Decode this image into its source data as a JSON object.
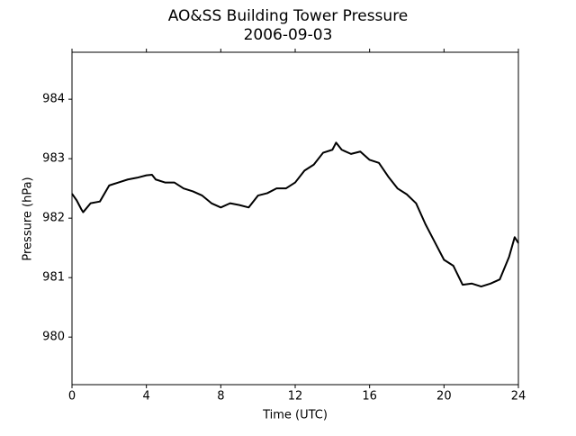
{
  "chart_data": {
    "type": "line",
    "title": "AO&SS Building Tower Pressure",
    "subtitle": "2006-09-03",
    "xlabel": "Time (UTC)",
    "ylabel": "Pressure (hPa)",
    "x": [
      0,
      0.25,
      0.5,
      0.6,
      1,
      1.5,
      2,
      2.5,
      3,
      3.5,
      4,
      4.3,
      4.5,
      5,
      5.5,
      6,
      6.5,
      7,
      7.5,
      8,
      8.5,
      9,
      9.5,
      10,
      10.5,
      11,
      11.5,
      12,
      12.5,
      13,
      13.5,
      14,
      14.2,
      14.5,
      15,
      15.5,
      16,
      16.5,
      17,
      17.5,
      18,
      18.5,
      19,
      19.5,
      20,
      20.5,
      21,
      21.5,
      22,
      22.5,
      23,
      23.5,
      23.8,
      24
    ],
    "series": [
      {
        "name": "Pressure",
        "color": "#000000",
        "values": [
          982.41,
          982.3,
          982.15,
          982.1,
          982.25,
          982.28,
          982.55,
          982.6,
          982.65,
          982.68,
          982.72,
          982.73,
          982.65,
          982.6,
          982.6,
          982.5,
          982.45,
          982.38,
          982.25,
          982.18,
          982.25,
          982.22,
          982.18,
          982.38,
          982.42,
          982.5,
          982.5,
          982.6,
          982.8,
          982.9,
          983.1,
          983.15,
          983.27,
          983.15,
          983.08,
          983.12,
          982.98,
          982.93,
          982.7,
          982.5,
          982.4,
          982.25,
          981.9,
          981.6,
          981.3,
          981.2,
          980.88,
          980.9,
          980.85,
          980.9,
          980.97,
          981.35,
          981.68,
          981.58
        ]
      }
    ],
    "xlim": [
      0,
      24
    ],
    "xticks": [
      0,
      4,
      8,
      12,
      16,
      20,
      24
    ],
    "ylim": [
      979.2,
      984.79
    ],
    "yticks": [
      980,
      981,
      982,
      983,
      984
    ],
    "grid": false
  }
}
